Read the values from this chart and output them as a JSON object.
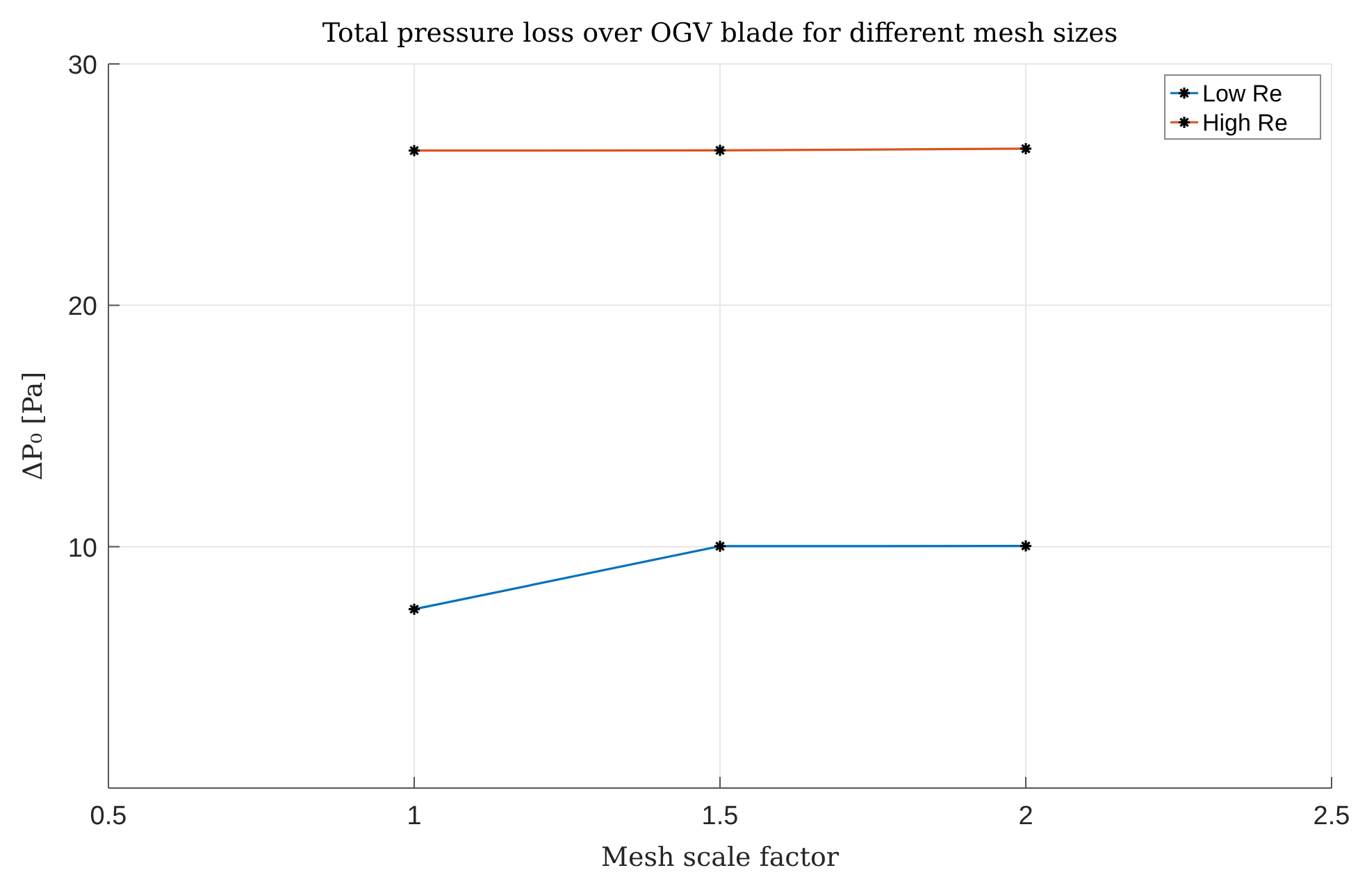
{
  "chart_data": {
    "type": "line",
    "title": "Total pressure loss over OGV blade for different mesh sizes",
    "xlabel": "Mesh scale factor",
    "ylabel": "ΔP₀ [Pa]",
    "x": [
      1,
      1.5,
      2
    ],
    "series": [
      {
        "name": "Low Re",
        "color": "#0072bd",
        "values": [
          7.41,
          10.02,
          10.03
        ]
      },
      {
        "name": "High Re",
        "color": "#d95319",
        "values": [
          26.41,
          26.42,
          26.49
        ]
      }
    ],
    "xlim": [
      0.5,
      2.5
    ],
    "xticks": [
      0.5,
      1,
      1.5,
      2,
      2.5
    ],
    "ylim": [
      0,
      30
    ],
    "yticks": [
      10,
      20,
      30
    ],
    "grid": true,
    "legend": "top right",
    "marker": "cross",
    "line_style": "solid"
  }
}
